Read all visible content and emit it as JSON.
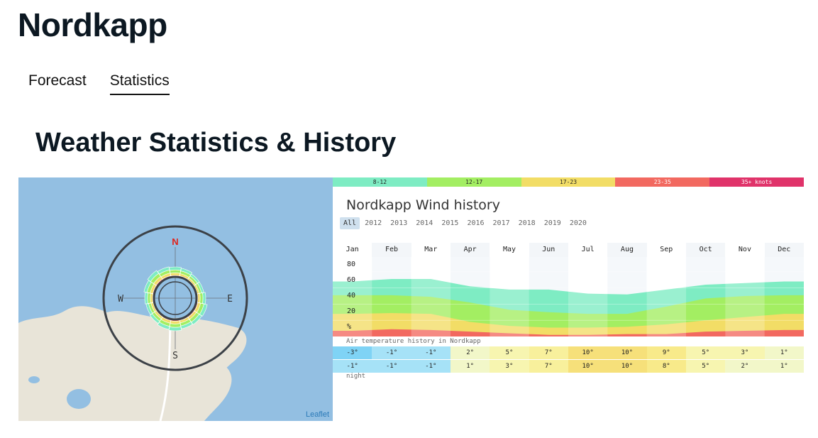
{
  "page": {
    "title": "Nordkapp",
    "heading": "Weather Statistics & History"
  },
  "tabs": [
    {
      "label": "Forecast",
      "active": false
    },
    {
      "label": "Statistics",
      "active": true
    }
  ],
  "map": {
    "compass": {
      "n": "N",
      "s": "S",
      "e": "E",
      "w": "W"
    },
    "attribution": "Leaflet",
    "colors": {
      "water": "#93bfe2",
      "land": "#e8e4d8",
      "north": "#e0221a"
    }
  },
  "legend": [
    {
      "label": "8-12",
      "color": "#7eecc3"
    },
    {
      "label": "12-17",
      "color": "#a3ee62"
    },
    {
      "label": "17-23",
      "color": "#f2dd66"
    },
    {
      "label": "23-35",
      "color": "#f26960"
    },
    {
      "label": "35+ knots",
      "color": "#e0336a"
    }
  ],
  "wind": {
    "title": "Nordkapp Wind history",
    "years": [
      "All",
      "2012",
      "2013",
      "2014",
      "2015",
      "2016",
      "2017",
      "2018",
      "2019",
      "2020"
    ],
    "selected_year": "All",
    "months": [
      "Jan",
      "Feb",
      "Mar",
      "Apr",
      "May",
      "Jun",
      "Jul",
      "Aug",
      "Sep",
      "Oct",
      "Nov",
      "Dec"
    ],
    "y_labels": [
      "80",
      "60",
      "40",
      "20",
      "%"
    ]
  },
  "chart_data": {
    "type": "area",
    "x": [
      "Jan",
      "Feb",
      "Mar",
      "Apr",
      "May",
      "Jun",
      "Jul",
      "Aug",
      "Sep",
      "Oct",
      "Nov",
      "Dec"
    ],
    "ylim": [
      0,
      100
    ],
    "series": [
      {
        "color": "#7eecc3",
        "values": [
          68,
          71,
          71,
          62,
          58,
          58,
          53,
          52,
          58,
          64,
          66,
          68
        ]
      },
      {
        "color": "#a3ee62",
        "values": [
          51,
          51,
          49,
          42,
          33,
          30,
          28,
          28,
          37,
          47,
          50,
          51
        ]
      },
      {
        "color": "#f2dd66",
        "values": [
          28,
          29,
          28,
          18,
          13,
          11,
          11,
          12,
          15,
          20,
          24,
          28
        ]
      },
      {
        "color": "#f26960",
        "values": [
          7,
          9,
          8,
          6,
          4,
          2,
          2,
          3,
          3,
          6,
          7,
          8
        ]
      }
    ]
  },
  "temperature": {
    "title": "Air temperature history in Nordkapp",
    "day": [
      "-3°",
      "-1°",
      "-1°",
      "2°",
      "5°",
      "7°",
      "10°",
      "10°",
      "9°",
      "5°",
      "3°",
      "1°"
    ],
    "night": [
      "-1°",
      "-1°",
      "-1°",
      "1°",
      "3°",
      "7°",
      "10°",
      "10°",
      "8°",
      "5°",
      "2°",
      "1°"
    ],
    "night_label": "night"
  }
}
